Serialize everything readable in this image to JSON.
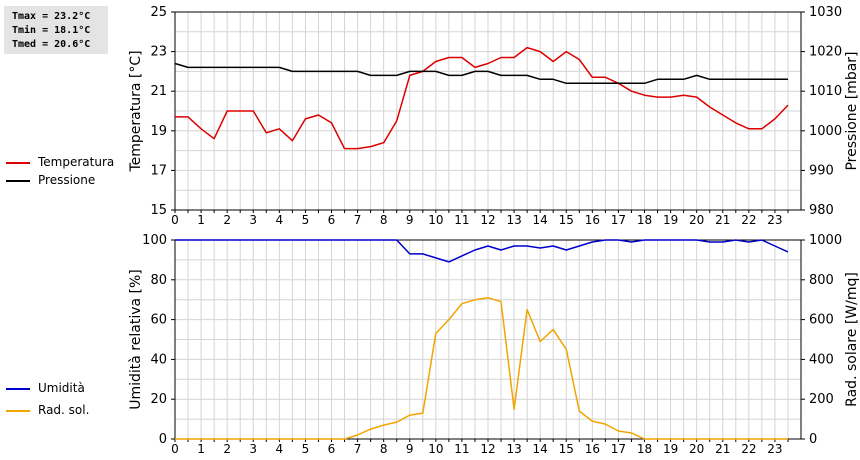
{
  "stats": {
    "tmax": "Tmax = 23.2°C",
    "tmin": "Tmin = 18.1°C",
    "tmed": "Tmed = 20.6°C"
  },
  "legend_top": [
    {
      "label": "Temperatura",
      "color": "#dd0000"
    },
    {
      "label": "Pressione",
      "color": "#000000"
    }
  ],
  "legend_bottom": [
    {
      "label": "Umidità",
      "color": "#0000cc"
    },
    {
      "label": "Rad. sol.",
      "color": "#f2a400"
    }
  ],
  "chart_data": [
    {
      "type": "line",
      "xlim": [
        0,
        24
      ],
      "x_ticks": [
        "0",
        "1",
        "2",
        "3",
        "4",
        "5",
        "6",
        "7",
        "8",
        "9",
        "10",
        "11",
        "12",
        "13",
        "14",
        "15",
        "16",
        "17",
        "18",
        "19",
        "20",
        "21",
        "22",
        "23"
      ],
      "grid": true,
      "y_left": {
        "label": "Temperatura [°C]",
        "range": [
          15,
          25
        ],
        "ticks": [
          "15",
          "17",
          "19",
          "21",
          "23",
          "25"
        ]
      },
      "y_right": {
        "label": "Pressione [mbar]",
        "range": [
          980,
          1030
        ],
        "ticks": [
          "980",
          "990",
          "1000",
          "1010",
          "1020",
          "1030"
        ]
      },
      "series": [
        {
          "name": "Temperatura",
          "axis": "left",
          "color": "#dd0000",
          "x": [
            0,
            0.5,
            1,
            1.5,
            2,
            2.5,
            3,
            3.5,
            4,
            4.5,
            5,
            5.5,
            6,
            6.5,
            7,
            7.5,
            8,
            8.5,
            9,
            9.5,
            10,
            10.5,
            11,
            11.5,
            12,
            12.5,
            13,
            13.5,
            14,
            14.5,
            15,
            15.5,
            16,
            16.5,
            17,
            17.5,
            18,
            18.5,
            19,
            19.5,
            20,
            20.5,
            21,
            21.5,
            22,
            22.5,
            23,
            23.5
          ],
          "y": [
            19.7,
            19.7,
            19.1,
            18.6,
            20.0,
            20.0,
            20.0,
            18.9,
            19.1,
            18.5,
            19.6,
            19.8,
            19.4,
            18.1,
            18.1,
            18.2,
            18.4,
            19.5,
            21.8,
            22.0,
            22.5,
            22.7,
            22.7,
            22.2,
            22.4,
            22.7,
            22.7,
            23.2,
            23.0,
            22.5,
            23.0,
            22.6,
            21.7,
            21.7,
            21.4,
            21.0,
            20.8,
            20.7,
            20.7,
            20.8,
            20.7,
            20.2,
            19.8,
            19.4,
            19.1,
            19.1,
            19.6,
            20.3
          ]
        },
        {
          "name": "Pressione",
          "axis": "right",
          "color": "#000000",
          "x": [
            0,
            0.5,
            1,
            1.5,
            2,
            2.5,
            3,
            3.5,
            4,
            4.5,
            5,
            5.5,
            6,
            6.5,
            7,
            7.5,
            8,
            8.5,
            9,
            9.5,
            10,
            10.5,
            11,
            11.5,
            12,
            12.5,
            13,
            13.5,
            14,
            14.5,
            15,
            15.5,
            16,
            16.5,
            17,
            17.5,
            18,
            18.5,
            19,
            19.5,
            20,
            20.5,
            21,
            21.5,
            22,
            22.5,
            23,
            23.5
          ],
          "y": [
            1017,
            1016,
            1016,
            1016,
            1016,
            1016,
            1016,
            1016,
            1016,
            1015,
            1015,
            1015,
            1015,
            1015,
            1015,
            1014,
            1014,
            1014,
            1015,
            1015,
            1015,
            1014,
            1014,
            1015,
            1015,
            1014,
            1014,
            1014,
            1013,
            1013,
            1012,
            1012,
            1012,
            1012,
            1012,
            1012,
            1012,
            1013,
            1013,
            1013,
            1014,
            1013,
            1013,
            1013,
            1013,
            1013,
            1013,
            1013
          ]
        }
      ]
    },
    {
      "type": "line",
      "xlim": [
        0,
        24
      ],
      "x_ticks": [
        "0",
        "1",
        "2",
        "3",
        "4",
        "5",
        "6",
        "7",
        "8",
        "9",
        "10",
        "11",
        "12",
        "13",
        "14",
        "15",
        "16",
        "17",
        "18",
        "19",
        "20",
        "21",
        "22",
        "23"
      ],
      "grid": true,
      "y_left": {
        "label": "Umidità relativa [%]",
        "range": [
          0,
          100
        ],
        "ticks": [
          "0",
          "20",
          "40",
          "60",
          "80",
          "100"
        ]
      },
      "y_right": {
        "label": "Rad. solare [W/mq]",
        "range": [
          0,
          1000
        ],
        "ticks": [
          "0",
          "200",
          "400",
          "600",
          "800",
          "1000"
        ]
      },
      "series": [
        {
          "name": "Umidità",
          "axis": "left",
          "color": "#0000cc",
          "x": [
            0,
            1,
            2,
            3,
            4,
            5,
            6,
            7,
            8,
            8.5,
            9,
            9.5,
            10,
            10.5,
            11,
            11.5,
            12,
            12.5,
            13,
            13.5,
            14,
            14.5,
            15,
            15.5,
            16,
            16.5,
            17,
            17.5,
            18,
            19,
            20,
            20.5,
            21,
            21.5,
            22,
            22.5,
            23,
            23.5
          ],
          "y": [
            100,
            100,
            100,
            100,
            100,
            100,
            100,
            100,
            100,
            100,
            93,
            93,
            91,
            89,
            92,
            95,
            97,
            95,
            97,
            97,
            96,
            97,
            95,
            97,
            99,
            100,
            100,
            99,
            100,
            100,
            100,
            99,
            99,
            100,
            99,
            100,
            97,
            94
          ]
        },
        {
          "name": "Rad. sol.",
          "axis": "right",
          "color": "#f2a400",
          "x": [
            0,
            1,
            2,
            3,
            4,
            5,
            6,
            6.5,
            7,
            7.5,
            8,
            8.5,
            9,
            9.5,
            10,
            10.5,
            11,
            11.5,
            12,
            12.5,
            13,
            13.5,
            14,
            14.5,
            15,
            15.5,
            16,
            16.5,
            17,
            17.5,
            18,
            18.5,
            19,
            20,
            21,
            22,
            23,
            23.5
          ],
          "y": [
            0,
            0,
            0,
            0,
            0,
            0,
            0,
            0,
            20,
            50,
            70,
            85,
            120,
            130,
            530,
            600,
            680,
            700,
            710,
            690,
            150,
            650,
            490,
            550,
            450,
            140,
            90,
            75,
            40,
            30,
            0,
            0,
            0,
            0,
            0,
            0,
            0,
            0
          ]
        }
      ]
    }
  ]
}
